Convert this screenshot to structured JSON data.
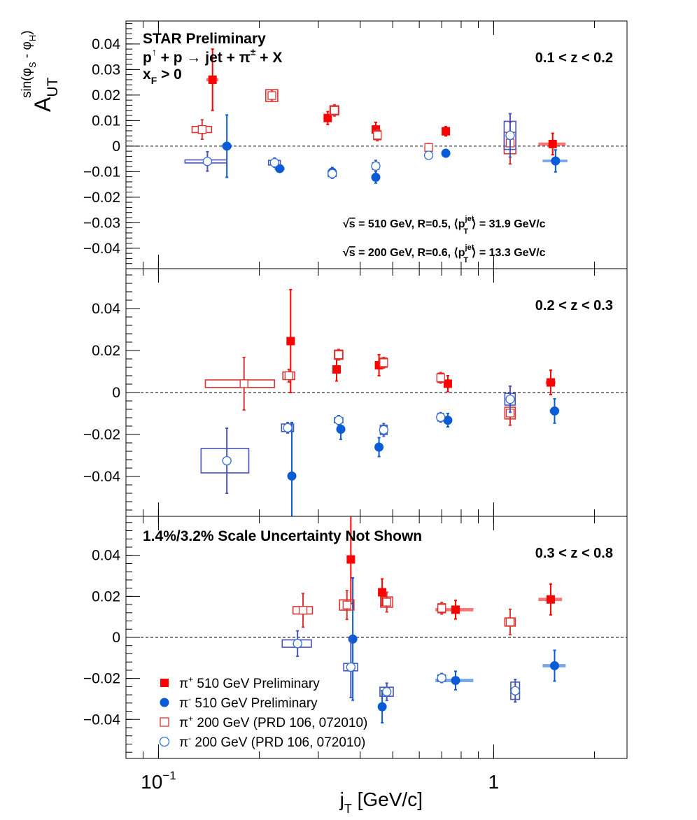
{
  "chart_data": {
    "type": "scatter",
    "header": {
      "experiment": "STAR Preliminary",
      "process_a": "p",
      "process_arrow_sup": "↑",
      "process_b": " + p  → jet +  π",
      "process_sup": "±",
      "process_c": " + X",
      "xf": "x",
      "xf_sub": "F",
      "xf_rest": " > 0"
    },
    "ylabel": {
      "base": "A",
      "sub": "UT",
      "sup": "sin(φ",
      "sup_s": "S",
      "sup_mid": " - φ",
      "sup_h": "H",
      "sup_end": ")"
    },
    "xlabel": {
      "base": "j",
      "sub": "T",
      "rest": " [GeV/c]"
    },
    "x_ticks": [
      {
        "v": 0.1,
        "base": "10",
        "exp": "−1"
      },
      {
        "v": 1,
        "base": "1",
        "exp": ""
      }
    ],
    "xlim": [
      0.08,
      2.5
    ],
    "xscale": "log",
    "notes": [
      {
        "panel": 0,
        "pre": "s",
        "mid": " = 510 GeV, R=0.5, ⟨p",
        "sup": "jet",
        "sub": "T",
        "post": "⟩ = 31.9 GeV/c"
      },
      {
        "panel": 0,
        "pre": "s",
        "mid": " = 200 GeV, R=0.6, ⟨p",
        "sup": "jet",
        "sub": "T",
        "post": "⟩ = 13.3 GeV/c"
      }
    ],
    "scale_note": "1.4%/3.2% Scale Uncertainty Not Shown",
    "legend": [
      {
        "key": "pip510",
        "sym": "π",
        "sup": "+",
        "label": " 510 GeV Preliminary"
      },
      {
        "key": "pim510",
        "sym": "π",
        "sup": "-",
        "label": " 510 GeV Preliminary"
      },
      {
        "key": "pip200",
        "sym": "π",
        "sup": "+",
        "label": " 200 GeV (PRD 106, 072010)"
      },
      {
        "key": "pim200",
        "sym": "π",
        "sup": "-",
        "label": " 200 GeV (PRD 106, 072010)"
      }
    ],
    "colors": {
      "pip510": "#ff0000",
      "pim510": "#0a5bd6",
      "pip200": "#dd3333",
      "pim200": "#4a54b8",
      "pim200_marker": "#2f6fd6"
    },
    "panels": [
      {
        "z_label": "0.1 < z < 0.2",
        "ylim": [
          -0.048,
          0.049
        ],
        "y_ticks": [
          0.04,
          0.03,
          0.02,
          0.01,
          0,
          -0.01,
          -0.02,
          -0.03,
          -0.04
        ],
        "y_tick_labels": [
          "0.04",
          "0.03",
          "0.02",
          "0.01",
          "0",
          "−0.01",
          "−0.02",
          "−0.03",
          "−0.04"
        ],
        "series": [
          {
            "key": "pip510",
            "points": [
              {
                "x": 0.145,
                "y": 0.026,
                "err": 0.012,
                "sx": 0.006,
                "sy": 0.0006
              },
              {
                "x": 0.32,
                "y": 0.011,
                "err": 0.0025,
                "sx": 0.009,
                "sy": 0.0006
              },
              {
                "x": 0.445,
                "y": 0.0065,
                "err": 0.0028,
                "sx": 0.012,
                "sy": 0.0006
              },
              {
                "x": 0.72,
                "y": 0.0058,
                "err": 0.0018,
                "sx": 0.02,
                "sy": 0.0006
              },
              {
                "x": 1.5,
                "y": 0.0008,
                "err": 0.0042,
                "sx": 0.14,
                "sy": 0.0006
              }
            ]
          },
          {
            "key": "pim510",
            "points": [
              {
                "x": 0.16,
                "y": 0.0,
                "err": 0.0122,
                "sx": 0.006,
                "sy": 0.0005
              },
              {
                "x": 0.23,
                "y": -0.0088,
                "err": 0.0012,
                "sx": 0.008,
                "sy": 0.0005
              },
              {
                "x": 0.33,
                "y": -0.0102,
                "err": 0.0018,
                "sx": 0.009,
                "sy": 0.0005
              },
              {
                "x": 0.445,
                "y": -0.0122,
                "err": 0.0023,
                "sx": 0.012,
                "sy": 0.0005
              },
              {
                "x": 0.72,
                "y": -0.0028,
                "err": 0.0015,
                "sx": 0.02,
                "sy": 0.0005
              },
              {
                "x": 1.53,
                "y": -0.0058,
                "err": 0.0043,
                "sx": 0.13,
                "sy": 0.0005
              }
            ]
          },
          {
            "key": "pip200",
            "points": [
              {
                "x": 0.135,
                "y": 0.0065,
                "err": 0.0038,
                "sx": 0.009,
                "sy": 0.0012
              },
              {
                "x": 0.218,
                "y": 0.0198,
                "err": 0.0022,
                "sx": 0.009,
                "sy": 0.0023
              },
              {
                "x": 0.335,
                "y": 0.014,
                "err": 0.0022,
                "sx": 0.01,
                "sy": 0.0018
              },
              {
                "x": 0.45,
                "y": 0.0043,
                "err": 0.0022,
                "sx": 0.011,
                "sy": 0.0018
              },
              {
                "x": 0.64,
                "y": -0.0005,
                "err": 0.0015,
                "sx": 0.015,
                "sy": 0.0015
              },
              {
                "x": 1.12,
                "y": 0.0012,
                "err": 0.0082,
                "sx": 0.045,
                "sy": 0.0042
              }
            ]
          },
          {
            "key": "pim200",
            "points": [
              {
                "x": 0.14,
                "y": -0.006,
                "err": 0.0038,
                "sx": 0.02,
                "sy": 0.0006
              },
              {
                "x": 0.222,
                "y": -0.0065,
                "err": 0.0018,
                "sx": 0.009,
                "sy": 0.0009
              },
              {
                "x": 0.33,
                "y": -0.0108,
                "err": 0.0018,
                "sx": 0.009,
                "sy": 0.0011
              },
              {
                "x": 0.445,
                "y": -0.0078,
                "err": 0.0022,
                "sx": 0.01,
                "sy": 0.0013
              },
              {
                "x": 0.64,
                "y": -0.0036,
                "err": 0.0012,
                "sx": 0.014,
                "sy": 0.0009
              },
              {
                "x": 1.12,
                "y": 0.0042,
                "err": 0.0085,
                "sx": 0.045,
                "sy": 0.0055
              }
            ]
          }
        ]
      },
      {
        "z_label": "0.2 < z < 0.3",
        "ylim": [
          -0.059,
          0.059
        ],
        "y_ticks": [
          0.04,
          0.02,
          0,
          -0.02,
          -0.04
        ],
        "y_tick_labels": [
          "0.04",
          "0.02",
          "0",
          "−0.02",
          "−0.04"
        ],
        "series": [
          {
            "key": "pip510",
            "points": [
              {
                "x": 0.248,
                "y": 0.0245,
                "err": 0.0245,
                "sx": 0.006,
                "sy": 0.0008
              },
              {
                "x": 0.34,
                "y": 0.011,
                "err": 0.0055,
                "sx": 0.007,
                "sy": 0.0008
              },
              {
                "x": 0.455,
                "y": 0.013,
                "err": 0.005,
                "sx": 0.01,
                "sy": 0.0008
              },
              {
                "x": 0.73,
                "y": 0.0042,
                "err": 0.0038,
                "sx": 0.018,
                "sy": 0.0008
              },
              {
                "x": 1.48,
                "y": 0.0048,
                "err": 0.0058,
                "sx": 0.05,
                "sy": 0.0008
              }
            ]
          },
          {
            "key": "pim510",
            "points": [
              {
                "x": 0.25,
                "y": -0.0398,
                "err": 0.0255,
                "sx": 0.006,
                "sy": 0.0008
              },
              {
                "x": 0.35,
                "y": -0.0175,
                "err": 0.0048,
                "sx": 0.007,
                "sy": 0.0008
              },
              {
                "x": 0.455,
                "y": -0.026,
                "err": 0.0045,
                "sx": 0.01,
                "sy": 0.0008
              },
              {
                "x": 0.73,
                "y": -0.0132,
                "err": 0.0032,
                "sx": 0.018,
                "sy": 0.0008
              },
              {
                "x": 1.52,
                "y": -0.0088,
                "err": 0.0058,
                "sx": 0.05,
                "sy": 0.0008
              }
            ]
          },
          {
            "key": "pip200",
            "points": [
              {
                "x": 0.18,
                "y": 0.0042,
                "err": 0.0125,
                "sx": 0.042,
                "sy": 0.0018
              },
              {
                "x": 0.245,
                "y": 0.008,
                "err": 0.003,
                "sx": 0.01,
                "sy": 0.0018
              },
              {
                "x": 0.345,
                "y": 0.018,
                "err": 0.0025,
                "sx": 0.01,
                "sy": 0.0022
              },
              {
                "x": 0.47,
                "y": 0.0142,
                "err": 0.0025,
                "sx": 0.011,
                "sy": 0.0022
              },
              {
                "x": 0.695,
                "y": 0.007,
                "err": 0.0025,
                "sx": 0.014,
                "sy": 0.0022
              },
              {
                "x": 1.12,
                "y": -0.0098,
                "err": 0.0058,
                "sx": 0.04,
                "sy": 0.0028
              }
            ]
          },
          {
            "key": "pim200",
            "points": [
              {
                "x": 0.16,
                "y": -0.0325,
                "err": 0.0155,
                "sx": 0.026,
                "sy": 0.0058
              },
              {
                "x": 0.243,
                "y": -0.0168,
                "err": 0.0025,
                "sx": 0.01,
                "sy": 0.0018
              },
              {
                "x": 0.345,
                "y": -0.0132,
                "err": 0.0022,
                "sx": 0.01,
                "sy": 0.0012
              },
              {
                "x": 0.47,
                "y": -0.0178,
                "err": 0.003,
                "sx": 0.011,
                "sy": 0.0022
              },
              {
                "x": 0.695,
                "y": -0.0118,
                "err": 0.0022,
                "sx": 0.014,
                "sy": 0.0018
              },
              {
                "x": 1.12,
                "y": -0.0032,
                "err": 0.0062,
                "sx": 0.04,
                "sy": 0.0028
              }
            ]
          }
        ]
      },
      {
        "z_label": "0.3 < z < 0.8",
        "ylim": [
          -0.059,
          0.059
        ],
        "y_ticks": [
          0.04,
          0.02,
          0,
          -0.02,
          -0.04
        ],
        "y_tick_labels": [
          "0.04",
          "0.02",
          "0",
          "−0.02",
          "−0.04"
        ],
        "series": [
          {
            "key": "pip510",
            "points": [
              {
                "x": 0.375,
                "y": 0.038,
                "err": 0.0215,
                "sx": 0.008,
                "sy": 0.0008
              },
              {
                "x": 0.465,
                "y": 0.022,
                "err": 0.0065,
                "sx": 0.012,
                "sy": 0.0008
              },
              {
                "x": 0.77,
                "y": 0.0135,
                "err": 0.0045,
                "sx": 0.1,
                "sy": 0.0008
              },
              {
                "x": 1.48,
                "y": 0.0185,
                "err": 0.0075,
                "sx": 0.12,
                "sy": 0.0008
              }
            ]
          },
          {
            "key": "pim510",
            "points": [
              {
                "x": 0.38,
                "y": -0.0008,
                "err": 0.0298,
                "sx": 0.008,
                "sy": 0.0008
              },
              {
                "x": 0.465,
                "y": -0.0338,
                "err": 0.0078,
                "sx": 0.012,
                "sy": 0.0008
              },
              {
                "x": 0.77,
                "y": -0.021,
                "err": 0.0045,
                "sx": 0.1,
                "sy": 0.0008
              },
              {
                "x": 1.52,
                "y": -0.0138,
                "err": 0.0075,
                "sx": 0.12,
                "sy": 0.0008
              }
            ]
          },
          {
            "key": "pip200",
            "points": [
              {
                "x": 0.27,
                "y": 0.0132,
                "err": 0.0082,
                "sx": 0.018,
                "sy": 0.0018
              },
              {
                "x": 0.365,
                "y": 0.0158,
                "err": 0.007,
                "sx": 0.018,
                "sy": 0.0025
              },
              {
                "x": 0.48,
                "y": 0.0172,
                "err": 0.0048,
                "sx": 0.02,
                "sy": 0.0025
              },
              {
                "x": 0.7,
                "y": 0.0142,
                "err": 0.0028,
                "sx": 0.018,
                "sy": 0.0022
              },
              {
                "x": 1.12,
                "y": 0.0075,
                "err": 0.0062,
                "sx": 0.04,
                "sy": 0.002
              }
            ]
          },
          {
            "key": "pim200",
            "points": [
              {
                "x": 0.26,
                "y": -0.003,
                "err": 0.0062,
                "sx": 0.026,
                "sy": 0.0018
              },
              {
                "x": 0.375,
                "y": -0.0145,
                "err": 0.0148,
                "sx": 0.018,
                "sy": 0.0018
              },
              {
                "x": 0.48,
                "y": -0.0265,
                "err": 0.0042,
                "sx": 0.022,
                "sy": 0.0022
              },
              {
                "x": 0.7,
                "y": -0.0198,
                "err": 0.0022,
                "sx": 0.018,
                "sy": 0.0015
              },
              {
                "x": 1.16,
                "y": -0.026,
                "err": 0.0055,
                "sx": 0.035,
                "sy": 0.0042
              }
            ]
          }
        ]
      }
    ]
  }
}
